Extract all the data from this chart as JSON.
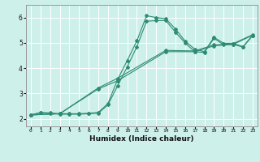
{
  "xlabel": "Humidex (Indice chaleur)",
  "bg_color": "#cef0ea",
  "grid_color": "#ffffff",
  "line_color": "#2e8b74",
  "xlim": [
    -0.5,
    23.5
  ],
  "ylim": [
    1.7,
    6.5
  ],
  "xticks": [
    0,
    1,
    2,
    3,
    4,
    5,
    6,
    7,
    8,
    9,
    10,
    11,
    12,
    13,
    14,
    15,
    16,
    17,
    18,
    19,
    20,
    21,
    22,
    23
  ],
  "yticks": [
    2,
    3,
    4,
    5,
    6
  ],
  "lines": [
    {
      "x": [
        0,
        1,
        2,
        3,
        4,
        5,
        6,
        7,
        8,
        9,
        10,
        11,
        12,
        13,
        14,
        15,
        16,
        17,
        18,
        19,
        20,
        21,
        22,
        23
      ],
      "y": [
        2.15,
        2.25,
        2.23,
        2.2,
        2.2,
        2.2,
        2.22,
        2.25,
        2.6,
        3.55,
        4.3,
        5.08,
        6.07,
        6.0,
        5.95,
        5.55,
        5.07,
        4.75,
        4.65,
        5.22,
        4.98,
        4.98,
        4.85,
        5.3
      ]
    },
    {
      "x": [
        0,
        1,
        2,
        3,
        4,
        5,
        6,
        7,
        8,
        9,
        10,
        11,
        12,
        13,
        14,
        15,
        16,
        17,
        18,
        19,
        20,
        21,
        22,
        23
      ],
      "y": [
        2.15,
        2.23,
        2.22,
        2.18,
        2.18,
        2.18,
        2.2,
        2.22,
        2.55,
        3.3,
        4.05,
        4.85,
        5.85,
        5.88,
        5.88,
        5.42,
        5.0,
        4.65,
        4.62,
        5.18,
        4.92,
        4.94,
        4.83,
        5.28
      ]
    },
    {
      "x": [
        0,
        3,
        7,
        9,
        14,
        17,
        19,
        21,
        23
      ],
      "y": [
        2.15,
        2.2,
        3.18,
        3.5,
        4.65,
        4.65,
        4.88,
        4.94,
        5.3
      ]
    },
    {
      "x": [
        0,
        3,
        7,
        9,
        14,
        17,
        19,
        21,
        23
      ],
      "y": [
        2.15,
        2.2,
        3.22,
        3.6,
        4.7,
        4.68,
        4.92,
        4.97,
        5.32
      ]
    }
  ],
  "xlabel_fontsize": 6.5,
  "xlabel_fontweight": "bold",
  "xtick_fontsize": 4.5,
  "ytick_fontsize": 5.5,
  "marker_size": 2.0,
  "line_width": 0.8
}
